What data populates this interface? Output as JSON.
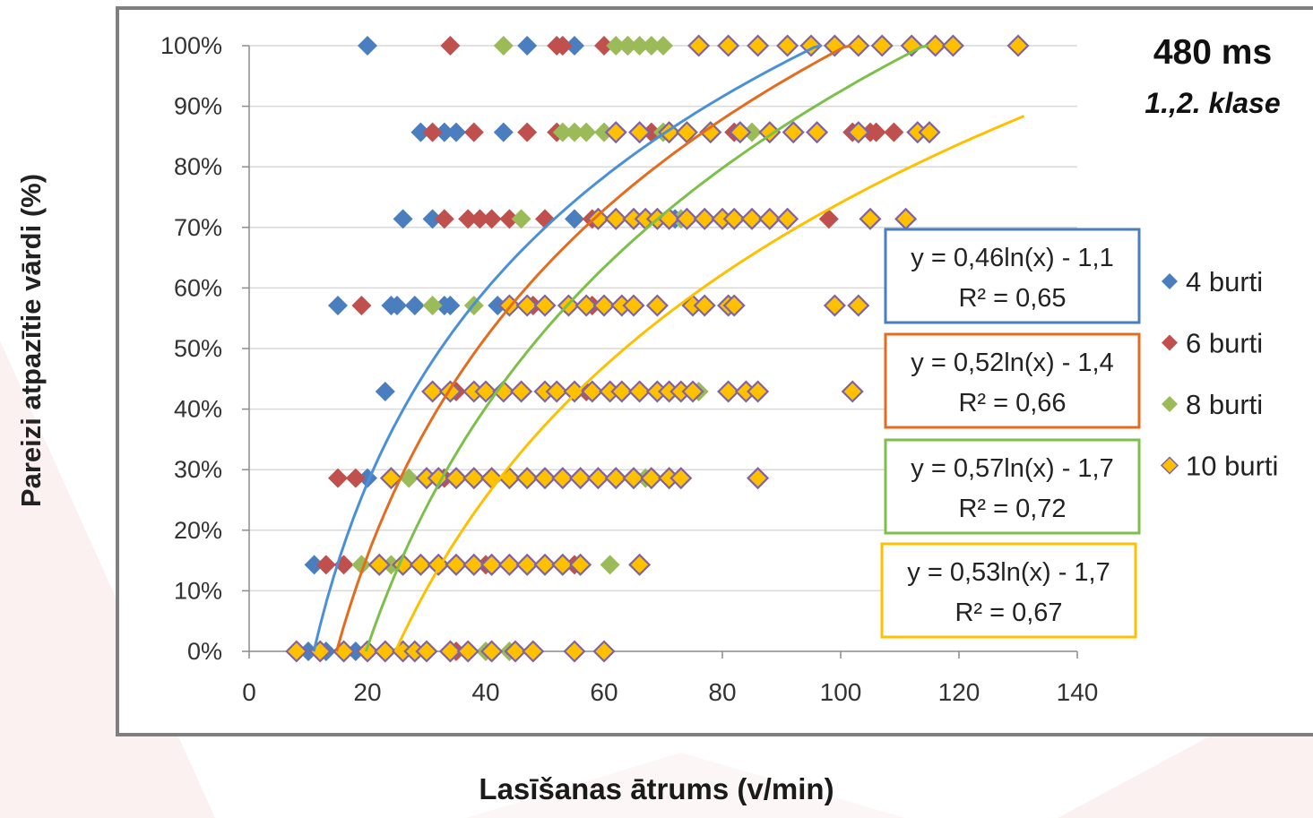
{
  "chart_data": {
    "type": "scatter",
    "title": "480 ms",
    "subtitle": "1.,2. klase",
    "xlabel": "Lasīšanas ātrums (v/min)",
    "ylabel": "Pareizi atpazītie vārdi (%)",
    "xlim": [
      0,
      140
    ],
    "ylim": [
      0,
      1
    ],
    "x_ticks": [
      "0",
      "20",
      "40",
      "60",
      "80",
      "100",
      "120",
      "140"
    ],
    "y_ticks": [
      "0%",
      "10%",
      "20%",
      "30%",
      "40%",
      "50%",
      "60%",
      "70%",
      "80%",
      "90%",
      "100%"
    ],
    "grid": "horizontal",
    "legend_position": "right",
    "series": [
      {
        "name": "4 burti",
        "color": "#4a7ebf",
        "trendline": {
          "a": 0.46,
          "b": -1.1,
          "r2": 0.65,
          "label": "y = 0,46ln(x) - 1,1",
          "r2_label": "R² = 0,65",
          "box_color": "#4a7ebf"
        },
        "points": [
          {
            "y": 1.0,
            "x": [
              20,
              47,
              53,
              55
            ]
          },
          {
            "y": 0.857,
            "x": [
              29,
              33,
              35,
              43
            ]
          },
          {
            "y": 0.714,
            "x": [
              26,
              31,
              55,
              72
            ]
          },
          {
            "y": 0.571,
            "x": [
              15,
              24,
              25,
              28,
              33,
              34,
              42
            ]
          },
          {
            "y": 0.429,
            "x": [
              23
            ]
          },
          {
            "y": 0.286,
            "x": [
              20
            ]
          },
          {
            "y": 0.143,
            "x": [
              11
            ]
          },
          {
            "y": 0.0,
            "x": [
              10,
              13,
              18
            ]
          }
        ]
      },
      {
        "name": "6 burti",
        "color": "#c0504d",
        "trendline": {
          "a": 0.52,
          "b": -1.4,
          "r2": 0.66,
          "label": "y = 0,52ln(x) - 1,4",
          "r2_label": "R² = 0,66",
          "box_color": "#e36c1f"
        },
        "points": [
          {
            "y": 1.0,
            "x": [
              34,
              52,
              53,
              60,
              64
            ]
          },
          {
            "y": 0.857,
            "x": [
              31,
              38,
              47,
              52,
              68,
              82,
              102,
              105,
              106,
              109
            ]
          },
          {
            "y": 0.714,
            "x": [
              33,
              37,
              39,
              41,
              44,
              50,
              58,
              98
            ]
          },
          {
            "y": 0.571,
            "x": [
              19,
              48,
              58
            ]
          },
          {
            "y": 0.429,
            "x": [
              35,
              57
            ]
          },
          {
            "y": 0.286,
            "x": [
              15,
              18,
              33
            ]
          },
          {
            "y": 0.143,
            "x": [
              13,
              16,
              40,
              55
            ]
          },
          {
            "y": 0.0,
            "x": [
              26,
              28,
              35
            ]
          }
        ]
      },
      {
        "name": "8 burti",
        "color": "#9bbb59",
        "trendline": {
          "a": 0.57,
          "b": -1.7,
          "r2": 0.72,
          "label": "y = 0,57ln(x) - 1,7",
          "r2_label": "R² = 0,72",
          "box_color": "#7cc04b"
        },
        "points": [
          {
            "y": 1.0,
            "x": [
              43,
              62,
              64,
              66,
              68,
              70
            ]
          },
          {
            "y": 0.857,
            "x": [
              53,
              55,
              57,
              60,
              70,
              85
            ]
          },
          {
            "y": 0.714,
            "x": [
              46,
              65,
              73
            ]
          },
          {
            "y": 0.571,
            "x": [
              31,
              38,
              44,
              57
            ]
          },
          {
            "y": 0.429,
            "x": [
              76
            ]
          },
          {
            "y": 0.286,
            "x": [
              27,
              67
            ]
          },
          {
            "y": 0.143,
            "x": [
              19,
              24,
              61
            ]
          },
          {
            "y": 0.0,
            "x": [
              40,
              44
            ]
          }
        ]
      },
      {
        "name": "10 burti",
        "color": "#ffc000",
        "trendline": {
          "a": 0.53,
          "b": -1.7,
          "r2": 0.67,
          "label": "y = 0,53ln(x) - 1,7",
          "r2_label": "R² = 0,67",
          "box_color": "#ffc000"
        },
        "points": [
          {
            "y": 1.0,
            "x": [
              76,
              81,
              86,
              91,
              95,
              99,
              103,
              107,
              112,
              116,
              119,
              130
            ]
          },
          {
            "y": 0.857,
            "x": [
              62,
              66,
              71,
              74,
              78,
              83,
              88,
              92,
              96,
              103,
              113,
              115
            ]
          },
          {
            "y": 0.714,
            "x": [
              59,
              62,
              65,
              67,
              69,
              71,
              74,
              77,
              80,
              82,
              85,
              88,
              91,
              105,
              111
            ]
          },
          {
            "y": 0.571,
            "x": [
              44,
              47,
              50,
              54,
              57,
              60,
              63,
              65,
              69,
              75,
              77,
              81,
              82,
              99,
              103
            ]
          },
          {
            "y": 0.429,
            "x": [
              31,
              34,
              38,
              40,
              43,
              46,
              50,
              52,
              55,
              58,
              61,
              63,
              66,
              69,
              71,
              73,
              75,
              81,
              84,
              86,
              102
            ]
          },
          {
            "y": 0.286,
            "x": [
              24,
              30,
              32,
              35,
              38,
              41,
              44,
              47,
              50,
              53,
              56,
              59,
              62,
              65,
              68,
              71,
              73,
              86
            ]
          },
          {
            "y": 0.143,
            "x": [
              22,
              26,
              29,
              32,
              35,
              38,
              41,
              44,
              47,
              50,
              53,
              56,
              66
            ]
          },
          {
            "y": 0.0,
            "x": [
              8,
              12,
              16,
              20,
              23,
              26,
              28,
              30,
              34,
              37,
              41,
              45,
              48,
              55,
              60
            ]
          }
        ]
      }
    ]
  }
}
